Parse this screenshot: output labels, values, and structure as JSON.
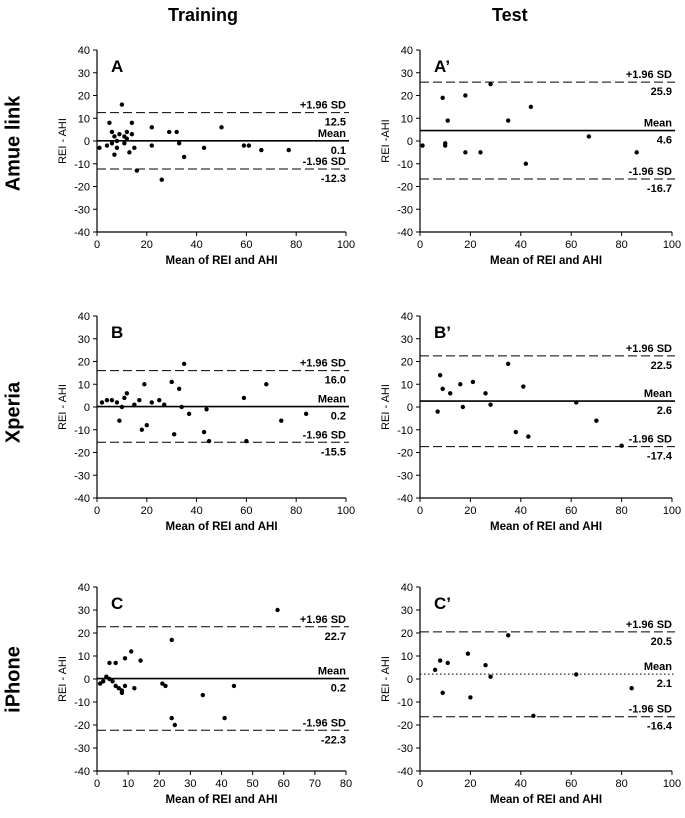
{
  "column_titles": [
    "Training",
    "Test"
  ],
  "row_labels": [
    "Amue link",
    "Xperia",
    "iPhone"
  ],
  "colors": {
    "axis": "#000000",
    "points": "#000000",
    "background": "#ffffff"
  },
  "chart_data": [
    {
      "type": "scatter",
      "panel": "A",
      "row": "Amue link",
      "column": "Training",
      "xlabel": "Mean of REI and AHI",
      "ylabel": "REI - AHI",
      "xlim": [
        0,
        100
      ],
      "ylim": [
        -40,
        40
      ],
      "xticks": [
        0,
        20,
        40,
        60,
        80,
        100
      ],
      "yticks": [
        -40,
        -30,
        -20,
        -10,
        0,
        10,
        20,
        30,
        40
      ],
      "lines": {
        "upper": 12.5,
        "mean": 0.1,
        "lower": -12.3
      },
      "line_labels": {
        "upper": "+1.96 SD",
        "mean": "Mean",
        "lower": "-1.96 SD"
      },
      "value_labels": {
        "upper": "12.5",
        "mean": "0.1",
        "lower": "-12.3"
      },
      "mean_line_style": "solid",
      "points": [
        [
          1,
          -3
        ],
        [
          4,
          -2
        ],
        [
          5,
          8
        ],
        [
          6,
          4
        ],
        [
          6,
          -1
        ],
        [
          7,
          -6
        ],
        [
          7,
          2
        ],
        [
          8,
          0
        ],
        [
          8,
          -3
        ],
        [
          9,
          3
        ],
        [
          10,
          16
        ],
        [
          11,
          -1
        ],
        [
          11,
          2
        ],
        [
          12,
          4
        ],
        [
          12,
          1
        ],
        [
          13,
          -5
        ],
        [
          14,
          3
        ],
        [
          14,
          8
        ],
        [
          15,
          -3
        ],
        [
          16,
          -13
        ],
        [
          22,
          -2
        ],
        [
          22,
          6
        ],
        [
          26,
          -17
        ],
        [
          29,
          4
        ],
        [
          32,
          4
        ],
        [
          33,
          -1
        ],
        [
          35,
          -7
        ],
        [
          43,
          -3
        ],
        [
          50,
          6
        ],
        [
          59,
          -2
        ],
        [
          61,
          -2
        ],
        [
          66,
          -4
        ],
        [
          77,
          -4
        ]
      ]
    },
    {
      "type": "scatter",
      "panel": "A’",
      "row": "Amue link",
      "column": "Test",
      "xlabel": "Mean of REI and AHI",
      "ylabel": "REI -AHI",
      "xlim": [
        0,
        100
      ],
      "ylim": [
        -40,
        40
      ],
      "xticks": [
        0,
        20,
        40,
        60,
        80,
        100
      ],
      "yticks": [
        -40,
        -30,
        -20,
        -10,
        0,
        10,
        20,
        30,
        40
      ],
      "lines": {
        "upper": 25.9,
        "mean": 4.6,
        "lower": -16.7
      },
      "line_labels": {
        "upper": "+1.96 SD",
        "mean": "Mean",
        "lower": "-1.96 SD"
      },
      "value_labels": {
        "upper": "25.9",
        "mean": "4.6",
        "lower": "-16.7"
      },
      "mean_line_style": "solid",
      "points": [
        [
          1,
          -2
        ],
        [
          9,
          19
        ],
        [
          10,
          -1
        ],
        [
          10,
          -2
        ],
        [
          11,
          9
        ],
        [
          18,
          20
        ],
        [
          18,
          -5
        ],
        [
          24,
          -5
        ],
        [
          28,
          25
        ],
        [
          35,
          9
        ],
        [
          42,
          -10
        ],
        [
          44,
          15
        ],
        [
          67,
          2
        ],
        [
          86,
          -5
        ]
      ]
    },
    {
      "type": "scatter",
      "panel": "B",
      "row": "Xperia",
      "column": "Training",
      "xlabel": "Mean of REI and AHI",
      "ylabel": "REI - AHI",
      "xlim": [
        0,
        100
      ],
      "ylim": [
        -40,
        40
      ],
      "xticks": [
        0,
        20,
        40,
        60,
        80,
        100
      ],
      "yticks": [
        -40,
        -30,
        -20,
        -10,
        0,
        10,
        20,
        30,
        40
      ],
      "lines": {
        "upper": 16.0,
        "mean": 0.2,
        "lower": -15.5
      },
      "line_labels": {
        "upper": "+1.96 SD",
        "mean": "Mean",
        "lower": "-1.96 SD"
      },
      "value_labels": {
        "upper": "16.0",
        "mean": "0.2",
        "lower": "-15.5"
      },
      "mean_line_style": "solid",
      "points": [
        [
          2,
          2
        ],
        [
          4,
          3
        ],
        [
          6,
          3
        ],
        [
          8,
          2
        ],
        [
          9,
          -6
        ],
        [
          10,
          0
        ],
        [
          11,
          4
        ],
        [
          12,
          6
        ],
        [
          15,
          1
        ],
        [
          17,
          3
        ],
        [
          18,
          -10
        ],
        [
          19,
          10
        ],
        [
          20,
          -8
        ],
        [
          22,
          2
        ],
        [
          25,
          3
        ],
        [
          27,
          1
        ],
        [
          30,
          11
        ],
        [
          31,
          -12
        ],
        [
          33,
          8
        ],
        [
          34,
          0
        ],
        [
          35,
          19
        ],
        [
          37,
          -3
        ],
        [
          43,
          -11
        ],
        [
          44,
          -1
        ],
        [
          45,
          -15
        ],
        [
          59,
          4
        ],
        [
          60,
          -15
        ],
        [
          68,
          10
        ],
        [
          74,
          -6
        ],
        [
          84,
          -3
        ]
      ]
    },
    {
      "type": "scatter",
      "panel": "B’",
      "row": "Xperia",
      "column": "Test",
      "xlabel": "Mean of REI and AHI",
      "ylabel": "REI - AHI",
      "xlim": [
        0,
        100
      ],
      "ylim": [
        -40,
        40
      ],
      "xticks": [
        0,
        20,
        40,
        60,
        80,
        100
      ],
      "yticks": [
        -40,
        -30,
        -20,
        -10,
        0,
        10,
        20,
        30,
        40
      ],
      "lines": {
        "upper": 22.5,
        "mean": 2.6,
        "lower": -17.4
      },
      "line_labels": {
        "upper": "+1.96 SD",
        "mean": "Mean",
        "lower": "-1.96 SD"
      },
      "value_labels": {
        "upper": "22.5",
        "mean": "2.6",
        "lower": "-17.4"
      },
      "mean_line_style": "solid",
      "points": [
        [
          7,
          -2
        ],
        [
          8,
          14
        ],
        [
          9,
          8
        ],
        [
          12,
          6
        ],
        [
          16,
          10
        ],
        [
          17,
          0
        ],
        [
          21,
          11
        ],
        [
          26,
          6
        ],
        [
          28,
          1
        ],
        [
          35,
          19
        ],
        [
          38,
          -11
        ],
        [
          41,
          9
        ],
        [
          43,
          -13
        ],
        [
          62,
          2
        ],
        [
          70,
          -6
        ],
        [
          80,
          -17
        ]
      ]
    },
    {
      "type": "scatter",
      "panel": "C",
      "row": "iPhone",
      "column": "Training",
      "xlabel": "Mean of REI and AHI",
      "ylabel": "REI - AHI",
      "xlim": [
        0,
        80
      ],
      "ylim": [
        -40,
        40
      ],
      "xticks": [
        0,
        10,
        20,
        30,
        40,
        50,
        60,
        70,
        80
      ],
      "yticks": [
        -40,
        -30,
        -20,
        -10,
        0,
        10,
        20,
        30,
        40
      ],
      "lines": {
        "upper": 22.7,
        "mean": 0.2,
        "lower": -22.3
      },
      "line_labels": {
        "upper": "+1.96 SD",
        "mean": "Mean",
        "lower": "-1.96 SD"
      },
      "value_labels": {
        "upper": "22.7",
        "mean": "0.2",
        "lower": "-22.3"
      },
      "mean_line_style": "solid",
      "points": [
        [
          1,
          -2
        ],
        [
          2,
          -1
        ],
        [
          3,
          1
        ],
        [
          4,
          7
        ],
        [
          4,
          0
        ],
        [
          5,
          -1
        ],
        [
          6,
          7
        ],
        [
          6,
          -3
        ],
        [
          7,
          -4
        ],
        [
          8,
          -6
        ],
        [
          8,
          -5
        ],
        [
          9,
          9
        ],
        [
          9,
          -3
        ],
        [
          11,
          12
        ],
        [
          12,
          -4
        ],
        [
          14,
          8
        ],
        [
          21,
          -2
        ],
        [
          22,
          -3
        ],
        [
          24,
          17
        ],
        [
          24,
          -17
        ],
        [
          25,
          -20
        ],
        [
          34,
          -7
        ],
        [
          41,
          -17
        ],
        [
          44,
          -3
        ],
        [
          58,
          30
        ]
      ]
    },
    {
      "type": "scatter",
      "panel": "C’",
      "row": "iPhone",
      "column": "Test",
      "xlabel": "Mean of REI and AHI",
      "ylabel": "REI - AHI",
      "xlim": [
        0,
        100
      ],
      "ylim": [
        -40,
        40
      ],
      "xticks": [
        0,
        20,
        40,
        60,
        80,
        100
      ],
      "yticks": [
        -40,
        -30,
        -20,
        -10,
        0,
        10,
        20,
        30,
        40
      ],
      "lines": {
        "upper": 20.5,
        "mean": 2.1,
        "lower": -16.4
      },
      "line_labels": {
        "upper": "+1.96 SD",
        "mean": "Mean",
        "lower": "-1.96 SD"
      },
      "value_labels": {
        "upper": "20.5",
        "mean": "2.1",
        "lower": "-16.4"
      },
      "mean_line_style": "dotted",
      "points": [
        [
          6,
          4
        ],
        [
          8,
          8
        ],
        [
          9,
          -6
        ],
        [
          11,
          7
        ],
        [
          19,
          11
        ],
        [
          20,
          -8
        ],
        [
          26,
          6
        ],
        [
          28,
          1
        ],
        [
          35,
          19
        ],
        [
          45,
          -16
        ],
        [
          62,
          2
        ],
        [
          84,
          -4
        ]
      ]
    }
  ]
}
